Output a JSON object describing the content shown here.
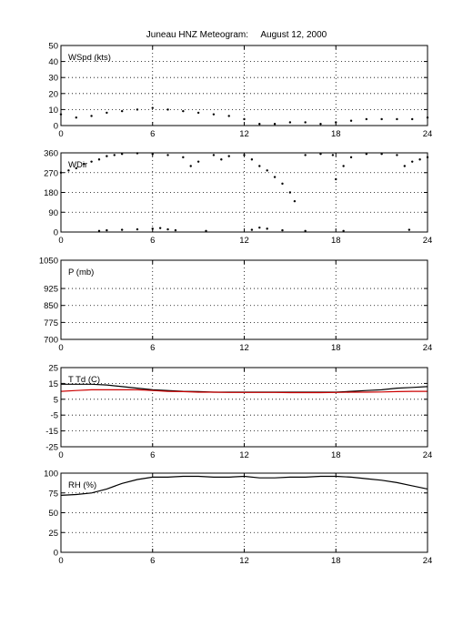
{
  "title": "Juneau HNZ Meteogram:     August 12, 2000",
  "chart_data": [
    {
      "type": "scatter",
      "label": "WSpd (kts)",
      "xlim": [
        0,
        24
      ],
      "ylim": [
        0,
        50
      ],
      "xticks": [
        0,
        6,
        12,
        18,
        24
      ],
      "yticks": [
        0,
        10,
        20,
        30,
        40,
        50
      ],
      "grid": true,
      "series": [
        {
          "color": "#000000",
          "x": [
            0,
            1,
            2,
            3,
            4,
            5,
            6,
            7,
            8,
            9,
            10,
            11,
            12,
            13,
            14,
            15,
            16,
            17,
            18,
            19,
            20,
            21,
            22,
            23,
            24
          ],
          "values": [
            7,
            5,
            6,
            8,
            9,
            10,
            11,
            10,
            9,
            8,
            7,
            6,
            4,
            1,
            1,
            2,
            2,
            1,
            2,
            3,
            4,
            4,
            4,
            4,
            5
          ]
        }
      ]
    },
    {
      "type": "scatter",
      "label": "WDir",
      "xlim": [
        0,
        24
      ],
      "ylim": [
        0,
        360
      ],
      "xticks": [
        0,
        6,
        12,
        18,
        24
      ],
      "yticks": [
        0,
        90,
        180,
        270,
        360
      ],
      "grid": true,
      "series": [
        {
          "color": "#000000",
          "x": [
            0,
            0.5,
            1,
            1.5,
            2,
            2.5,
            3,
            3.5,
            4,
            5,
            6,
            7,
            8,
            8.5,
            9,
            10,
            10.5,
            11,
            12,
            12.5,
            13,
            13.5,
            14,
            14.5,
            15,
            15.3,
            16,
            17,
            17.8,
            18,
            18.5,
            19,
            20,
            21,
            22,
            22.5,
            23,
            23.5,
            24
          ],
          "values": [
            270,
            280,
            290,
            310,
            320,
            330,
            345,
            350,
            355,
            358,
            355,
            350,
            340,
            300,
            320,
            350,
            330,
            345,
            350,
            330,
            300,
            280,
            250,
            220,
            180,
            140,
            350,
            355,
            350,
            240,
            300,
            340,
            355,
            355,
            350,
            300,
            320,
            330,
            340
          ]
        },
        {
          "color": "#000000",
          "x": [
            2.5,
            3,
            4,
            5,
            6,
            6.5,
            7,
            7.5,
            9.5,
            12.5,
            13,
            13.5,
            14.5,
            16,
            18.5,
            22.8
          ],
          "values": [
            5,
            8,
            10,
            12,
            15,
            18,
            12,
            8,
            5,
            10,
            20,
            15,
            8,
            5,
            5,
            10
          ]
        }
      ]
    },
    {
      "type": "line",
      "label": "P (mb)",
      "xlim": [
        0,
        24
      ],
      "ylim": [
        700,
        1050
      ],
      "xticks": [
        0,
        6,
        12,
        18,
        24
      ],
      "yticks": [
        700,
        775,
        850,
        925,
        1050
      ],
      "grid": true,
      "series": []
    },
    {
      "type": "line",
      "label": "T Td (C)",
      "xlim": [
        0,
        24
      ],
      "ylim": [
        -25,
        25
      ],
      "xticks": [
        0,
        6,
        12,
        18,
        24
      ],
      "yticks": [
        -25,
        -15,
        -5,
        5,
        15,
        25
      ],
      "grid": true,
      "series": [
        {
          "color": "#000000",
          "x": [
            0,
            1,
            2,
            3,
            4,
            5,
            6,
            7,
            8,
            9,
            10,
            11,
            12,
            13,
            14,
            15,
            16,
            17,
            18,
            19,
            20,
            21,
            22,
            23,
            24
          ],
          "values": [
            14.5,
            14.5,
            14.5,
            14,
            13,
            12,
            11,
            10.5,
            10,
            9.8,
            9.5,
            9.5,
            9.5,
            9.5,
            9.5,
            9.5,
            9.5,
            9.5,
            9.5,
            10,
            10.5,
            11,
            12,
            12.5,
            13
          ]
        },
        {
          "color": "#cc0000",
          "x": [
            0,
            1,
            2,
            3,
            4,
            5,
            6,
            7,
            8,
            9,
            10,
            11,
            12,
            13,
            14,
            15,
            16,
            17,
            18,
            19,
            20,
            21,
            22,
            23,
            24
          ],
          "values": [
            10,
            10.5,
            11,
            11,
            11,
            11,
            10.5,
            10,
            9.8,
            9.5,
            9.5,
            9.3,
            9.3,
            9.3,
            9.3,
            9.2,
            9.2,
            9.2,
            9.3,
            9.5,
            9.5,
            9.6,
            9.8,
            10,
            10
          ]
        }
      ]
    },
    {
      "type": "line",
      "label": "RH (%)",
      "xlim": [
        0,
        24
      ],
      "ylim": [
        0,
        100
      ],
      "xticks": [
        0,
        6,
        12,
        18,
        24
      ],
      "yticks": [
        0,
        25,
        50,
        75,
        100
      ],
      "grid": true,
      "series": [
        {
          "color": "#000000",
          "x": [
            0,
            1,
            2,
            3,
            4,
            5,
            6,
            7,
            8,
            9,
            10,
            11,
            12,
            13,
            14,
            15,
            16,
            17,
            18,
            19,
            20,
            21,
            22,
            23,
            24
          ],
          "values": [
            72,
            73,
            75,
            80,
            87,
            92,
            95,
            95,
            96,
            96,
            95,
            95,
            96,
            94,
            94,
            95,
            95,
            96,
            96,
            95,
            93,
            91,
            88,
            84,
            80
          ]
        }
      ]
    }
  ]
}
